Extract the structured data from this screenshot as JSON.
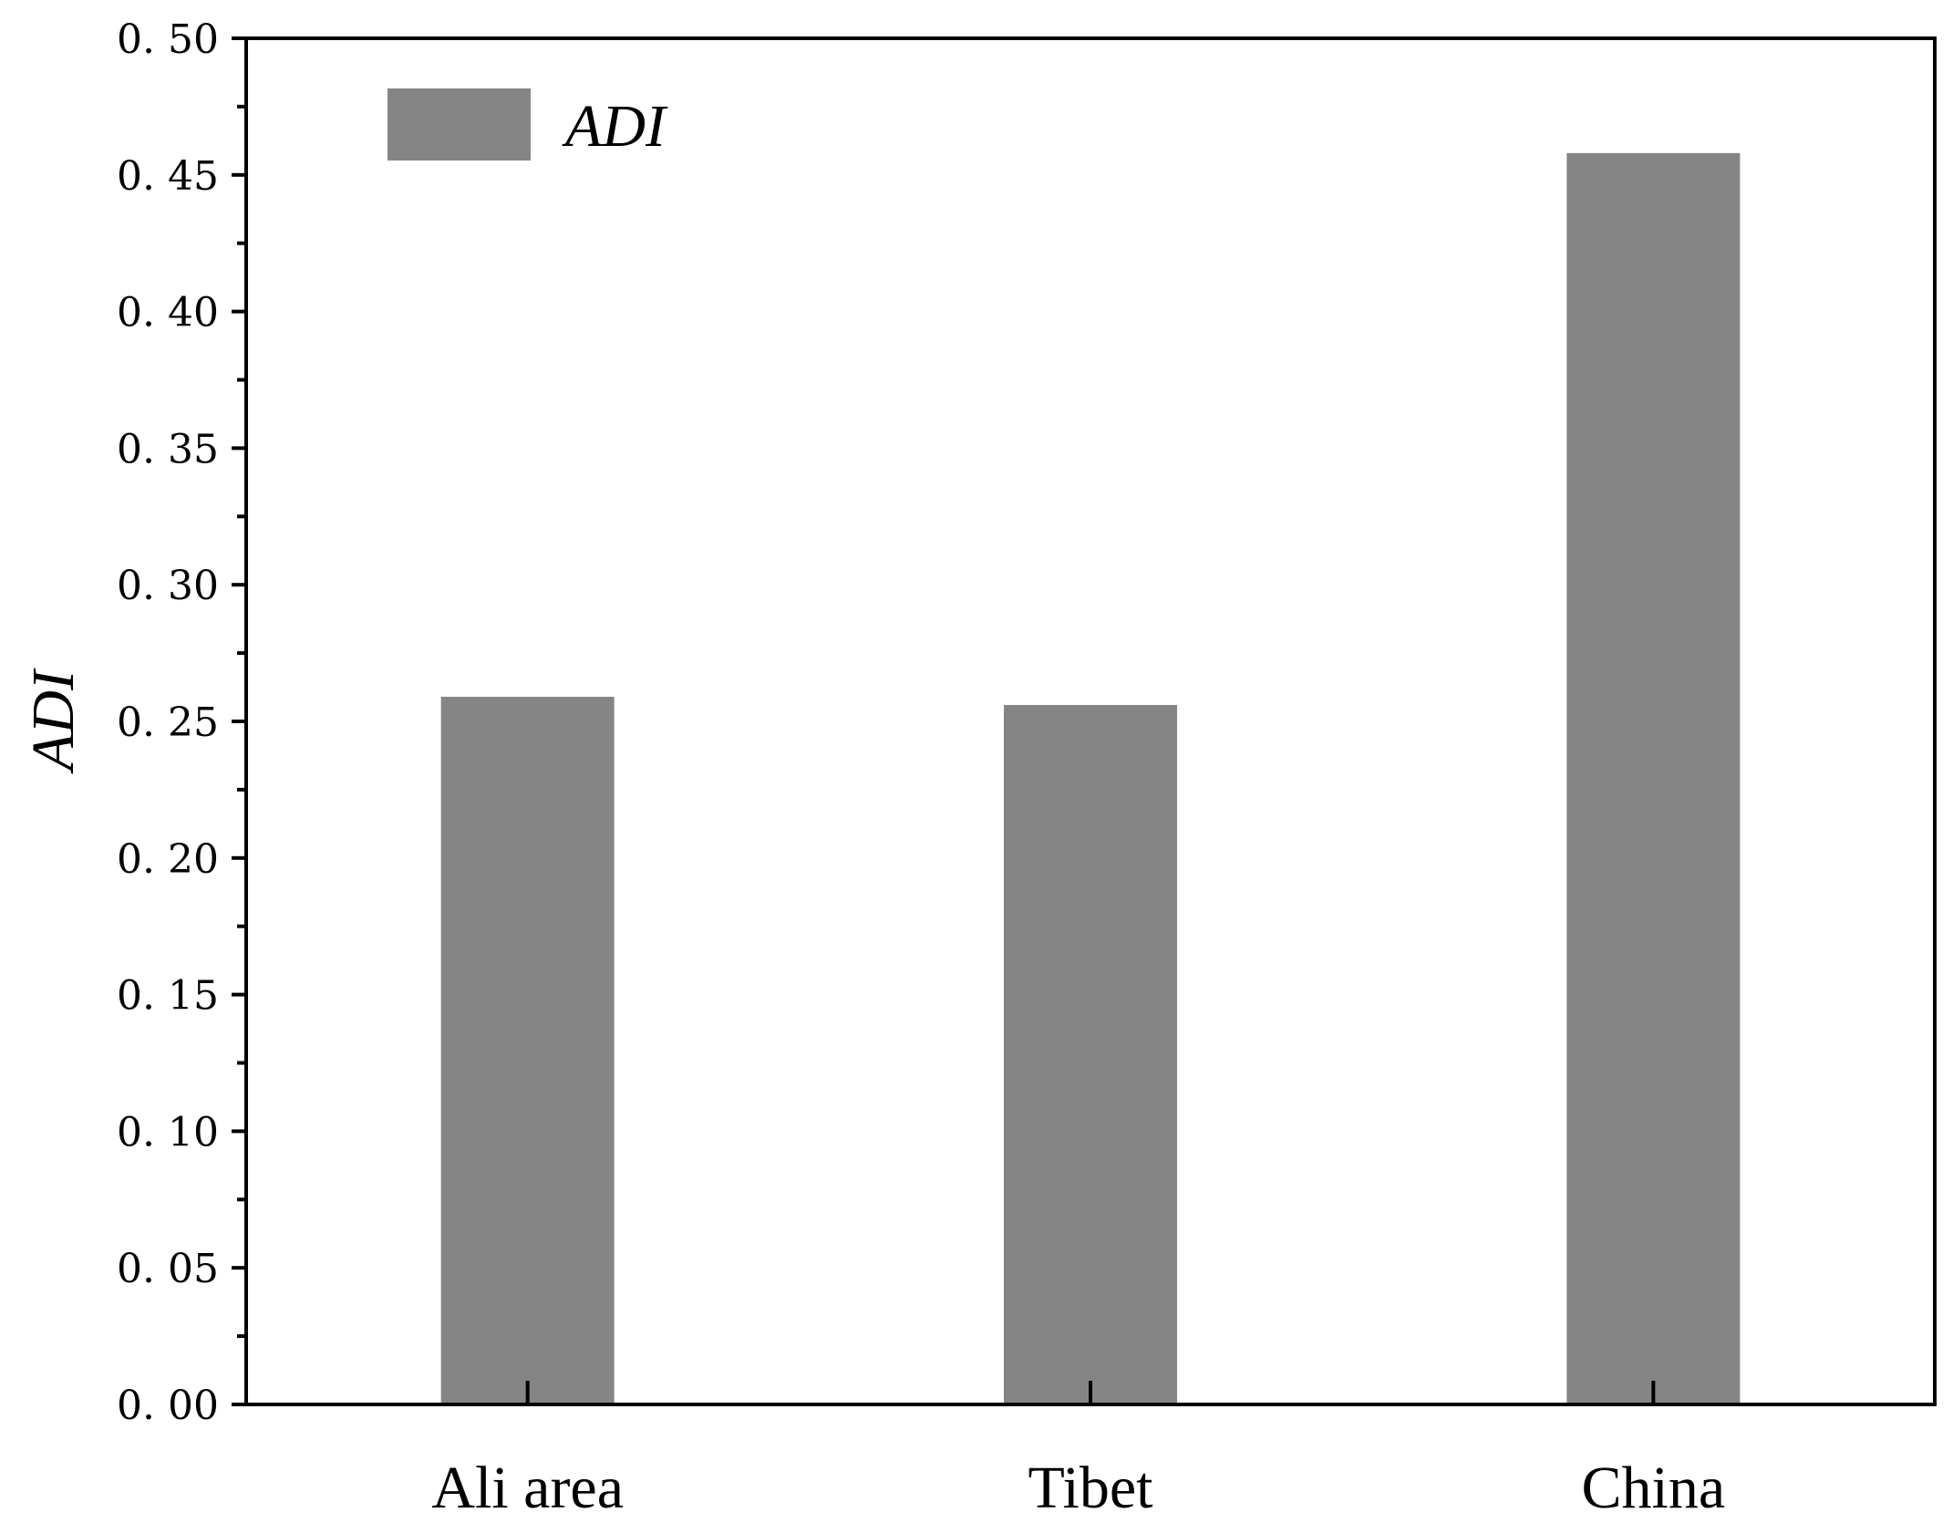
{
  "chart_data": {
    "type": "bar",
    "categories": [
      "Ali area",
      "Tibet",
      "China"
    ],
    "series": [
      {
        "name": "ADI",
        "values": [
          0.259,
          0.256,
          0.458
        ],
        "color": "#858585"
      }
    ],
    "title": "",
    "xlabel": "",
    "ylabel": "ADI",
    "ylim": [
      0,
      0.5
    ],
    "yticks": [
      "0.00",
      "0.05",
      "0.10",
      "0.15",
      "0.20",
      "0.25",
      "0.30",
      "0.35",
      "0.40",
      "0.45",
      "0.50"
    ],
    "grid": false,
    "legend": {
      "position": "top-left",
      "label": "ADI"
    }
  }
}
